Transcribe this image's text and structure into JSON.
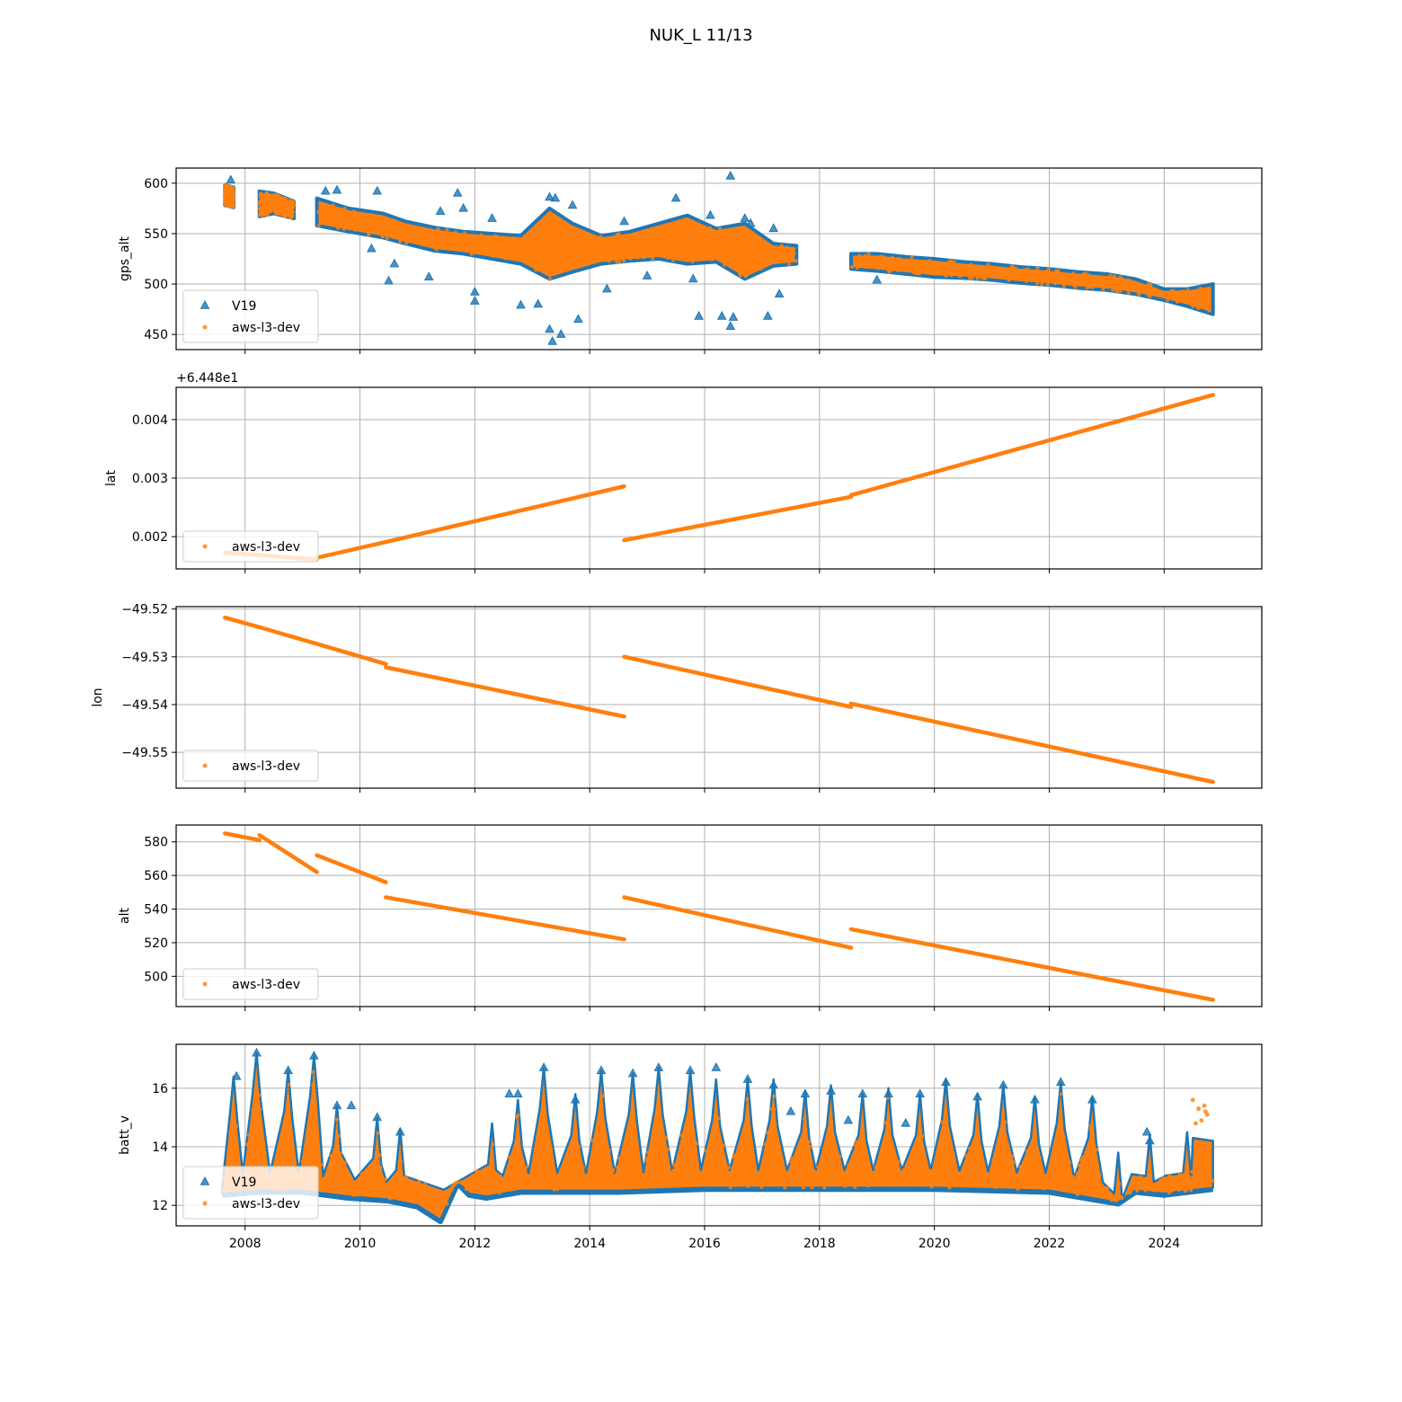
{
  "title": "NUK_L 11/13",
  "colors": {
    "v19": "#1f77b4",
    "aws": "#ff7f0e",
    "grid": "#b0b0b0"
  },
  "x_ticks": [
    "2008",
    "2010",
    "2012",
    "2014",
    "2016",
    "2018",
    "2020",
    "2022",
    "2024"
  ],
  "chart_data": [
    {
      "type": "scatter",
      "ylabel": "gps_alt",
      "xlim": [
        2006.8,
        2025.7
      ],
      "ylim": [
        435,
        615
      ],
      "y_ticks": [
        "450",
        "500",
        "550",
        "600"
      ],
      "y_tick_values": [
        450,
        500,
        550,
        600
      ],
      "legend": [
        "V19",
        "aws-l3-dev"
      ],
      "legend_position": "lower-left",
      "series": [
        {
          "name": "aws-l3-dev",
          "kind": "band",
          "points": [
            [
              2007.65,
              578,
              598
            ],
            [
              2007.8,
              576,
              596
            ],
            [
              2008.25,
              567,
              592
            ],
            [
              2008.5,
              570,
              590
            ],
            [
              2008.85,
              565,
              582
            ],
            [
              2009.25,
              558,
              585
            ],
            [
              2009.8,
              552,
              575
            ],
            [
              2010.4,
              546,
              570
            ],
            [
              2010.8,
              540,
              562
            ],
            [
              2011.3,
              533,
              556
            ],
            [
              2011.8,
              530,
              552
            ],
            [
              2012.3,
              525,
              550
            ],
            [
              2012.8,
              520,
              548
            ],
            [
              2013.3,
              505,
              575
            ],
            [
              2013.7,
              512,
              560
            ],
            [
              2014.2,
              520,
              548
            ],
            [
              2014.7,
              523,
              552
            ],
            [
              2015.2,
              525,
              560
            ],
            [
              2015.7,
              520,
              568
            ],
            [
              2016.2,
              522,
              555
            ],
            [
              2016.7,
              505,
              560
            ],
            [
              2017.2,
              518,
              540
            ],
            [
              2017.6,
              520,
              538
            ],
            [
              2018.55,
              515,
              530
            ],
            [
              2019.0,
              513,
              530
            ],
            [
              2019.5,
              510,
              527
            ],
            [
              2020.0,
              507,
              525
            ],
            [
              2020.5,
              506,
              522
            ],
            [
              2021.0,
              504,
              520
            ],
            [
              2021.5,
              501,
              517
            ],
            [
              2022.0,
              499,
              515
            ],
            [
              2022.5,
              496,
              512
            ],
            [
              2023.0,
              494,
              510
            ],
            [
              2023.5,
              490,
              505
            ],
            [
              2024.0,
              484,
              495
            ],
            [
              2024.4,
              478,
              495
            ],
            [
              2024.85,
              470,
              500
            ]
          ]
        },
        {
          "name": "V19",
          "kind": "scatter",
          "points": [
            [
              2007.75,
              603
            ],
            [
              2009.4,
              592
            ],
            [
              2009.6,
              593
            ],
            [
              2010.3,
              592
            ],
            [
              2010.2,
              535
            ],
            [
              2010.5,
              503
            ],
            [
              2010.6,
              520
            ],
            [
              2011.2,
              507
            ],
            [
              2011.4,
              572
            ],
            [
              2011.7,
              590
            ],
            [
              2011.8,
              575
            ],
            [
              2012.0,
              492
            ],
            [
              2012.0,
              483
            ],
            [
              2012.3,
              565
            ],
            [
              2012.8,
              479
            ],
            [
              2013.1,
              480
            ],
            [
              2013.3,
              586
            ],
            [
              2013.4,
              585
            ],
            [
              2013.3,
              455
            ],
            [
              2013.35,
              443
            ],
            [
              2013.5,
              450
            ],
            [
              2013.8,
              465
            ],
            [
              2013.7,
              578
            ],
            [
              2014.3,
              495
            ],
            [
              2014.6,
              562
            ],
            [
              2015.0,
              508
            ],
            [
              2015.5,
              585
            ],
            [
              2015.8,
              505
            ],
            [
              2015.9,
              468
            ],
            [
              2016.1,
              568
            ],
            [
              2016.3,
              468
            ],
            [
              2016.45,
              458
            ],
            [
              2016.45,
              607
            ],
            [
              2016.5,
              467
            ],
            [
              2016.7,
              565
            ],
            [
              2016.8,
              560
            ],
            [
              2017.1,
              468
            ],
            [
              2017.2,
              555
            ],
            [
              2017.3,
              490
            ],
            [
              2019.0,
              504
            ]
          ]
        }
      ]
    },
    {
      "type": "scatter",
      "ylabel": "lat",
      "offset_label": "+6.448e1",
      "xlim": [
        2006.8,
        2025.7
      ],
      "ylim": [
        0.00145,
        0.00455
      ],
      "y_ticks": [
        "0.002",
        "0.003",
        "0.004"
      ],
      "y_tick_values": [
        0.002,
        0.003,
        0.004
      ],
      "legend": [
        "aws-l3-dev"
      ],
      "legend_position": "lower-left",
      "series": [
        {
          "name": "aws-l3-dev",
          "segments": [
            [
              [
                2007.65,
                0.00173
              ],
              [
                2009.25,
                0.00161
              ]
            ],
            [
              [
                2009.25,
                0.00164
              ],
              [
                2010.45,
                0.00191
              ],
              [
                2014.6,
                0.00286
              ]
            ],
            [
              [
                2014.6,
                0.00194
              ],
              [
                2018.55,
                0.00268
              ]
            ],
            [
              [
                2018.55,
                0.00271
              ],
              [
                2024.85,
                0.00442
              ]
            ]
          ]
        }
      ]
    },
    {
      "type": "scatter",
      "ylabel": "lon",
      "xlim": [
        2006.8,
        2025.7
      ],
      "ylim": [
        -49.5575,
        -49.5195
      ],
      "y_ticks": [
        "−49.52",
        "−49.53",
        "−49.54",
        "−49.55"
      ],
      "y_tick_values": [
        -49.52,
        -49.53,
        -49.54,
        -49.55
      ],
      "legend": [
        "aws-l3-dev"
      ],
      "legend_position": "lower-left",
      "series": [
        {
          "name": "aws-l3-dev",
          "segments": [
            [
              [
                2007.65,
                -49.5218
              ],
              [
                2008.25,
                -49.5238
              ],
              [
                2010.45,
                -49.5315
              ]
            ],
            [
              [
                2010.45,
                -49.5322
              ],
              [
                2014.6,
                -49.5425
              ]
            ],
            [
              [
                2014.6,
                -49.53
              ],
              [
                2018.55,
                -49.5405
              ]
            ],
            [
              [
                2018.55,
                -49.5398
              ],
              [
                2024.85,
                -49.5562
              ]
            ]
          ]
        }
      ]
    },
    {
      "type": "scatter",
      "ylabel": "alt",
      "xlim": [
        2006.8,
        2025.7
      ],
      "ylim": [
        482,
        590
      ],
      "y_ticks": [
        "500",
        "520",
        "540",
        "560",
        "580"
      ],
      "y_tick_values": [
        500,
        520,
        540,
        560,
        580
      ],
      "legend": [
        "aws-l3-dev"
      ],
      "legend_position": "lower-left",
      "series": [
        {
          "name": "aws-l3-dev",
          "segments": [
            [
              [
                2007.65,
                585
              ],
              [
                2008.25,
                581
              ]
            ],
            [
              [
                2008.25,
                584
              ],
              [
                2009.25,
                562
              ]
            ],
            [
              [
                2009.25,
                572
              ],
              [
                2010.45,
                556
              ]
            ],
            [
              [
                2010.45,
                547
              ],
              [
                2014.6,
                522
              ]
            ],
            [
              [
                2014.6,
                547
              ],
              [
                2018.55,
                517
              ]
            ],
            [
              [
                2018.55,
                528
              ],
              [
                2024.85,
                486
              ]
            ]
          ]
        }
      ]
    },
    {
      "type": "scatter",
      "ylabel": "batt_v",
      "xlim": [
        2006.8,
        2025.7
      ],
      "ylim": [
        11.3,
        17.5
      ],
      "y_ticks": [
        "12",
        "14",
        "16"
      ],
      "y_tick_values": [
        12,
        14,
        16
      ],
      "legend": [
        "V19",
        "aws-l3-dev"
      ],
      "legend_position": "lower-left",
      "series": [
        {
          "name": "aws-l3-dev",
          "kind": "seasonal",
          "low_points": [
            [
              2007.6,
              12.4
            ],
            [
              2008.2,
              12.5
            ],
            [
              2009.0,
              12.5
            ],
            [
              2009.8,
              12.3
            ],
            [
              2010.5,
              12.2
            ],
            [
              2011.0,
              12.0
            ],
            [
              2011.4,
              11.5
            ],
            [
              2011.7,
              12.8
            ],
            [
              2011.9,
              12.4
            ],
            [
              2012.2,
              12.3
            ],
            [
              2012.8,
              12.5
            ],
            [
              2013.5,
              12.5
            ],
            [
              2014.5,
              12.5
            ],
            [
              2016.0,
              12.6
            ],
            [
              2018.0,
              12.6
            ],
            [
              2020.0,
              12.6
            ],
            [
              2022.0,
              12.5
            ],
            [
              2022.9,
              12.2
            ],
            [
              2023.2,
              12.1
            ],
            [
              2023.5,
              12.5
            ],
            [
              2024.0,
              12.4
            ],
            [
              2024.85,
              12.6
            ]
          ],
          "peaks": [
            [
              2007.8,
              16.4
            ],
            [
              2008.2,
              17.2
            ],
            [
              2008.75,
              16.6
            ],
            [
              2009.2,
              17.1
            ],
            [
              2009.6,
              15.4
            ],
            [
              2010.3,
              15.0
            ],
            [
              2010.7,
              14.6
            ],
            [
              2012.3,
              14.8
            ],
            [
              2012.75,
              15.6
            ],
            [
              2013.2,
              16.7
            ],
            [
              2013.75,
              15.8
            ],
            [
              2014.2,
              16.6
            ],
            [
              2014.75,
              16.5
            ],
            [
              2015.2,
              16.7
            ],
            [
              2015.75,
              16.6
            ],
            [
              2016.2,
              16.3
            ],
            [
              2016.75,
              16.3
            ],
            [
              2017.2,
              16.3
            ],
            [
              2017.75,
              15.9
            ],
            [
              2018.2,
              16.1
            ],
            [
              2018.75,
              15.8
            ],
            [
              2019.2,
              16.0
            ],
            [
              2019.75,
              15.8
            ],
            [
              2020.2,
              16.3
            ],
            [
              2020.75,
              15.8
            ],
            [
              2021.2,
              16.1
            ],
            [
              2021.75,
              15.7
            ],
            [
              2022.2,
              16.2
            ],
            [
              2022.75,
              15.7
            ],
            [
              2023.2,
              13.8
            ],
            [
              2023.75,
              14.4
            ],
            [
              2024.4,
              14.5
            ]
          ],
          "outliers": [
            [
              2024.5,
              15.6
            ],
            [
              2024.6,
              15.3
            ],
            [
              2024.65,
              14.9
            ],
            [
              2024.7,
              15.4
            ],
            [
              2024.75,
              15.1
            ],
            [
              2024.55,
              14.8
            ],
            [
              2024.72,
              15.2
            ]
          ]
        },
        {
          "name": "V19",
          "kind": "scatter",
          "points": [
            [
              2008.2,
              17.2
            ],
            [
              2009.2,
              17.1
            ],
            [
              2008.75,
              16.6
            ],
            [
              2007.85,
              16.4
            ],
            [
              2009.6,
              15.4
            ],
            [
              2009.85,
              15.4
            ],
            [
              2010.3,
              15.0
            ],
            [
              2010.7,
              14.5
            ],
            [
              2012.6,
              15.8
            ],
            [
              2012.75,
              15.8
            ],
            [
              2013.2,
              16.7
            ],
            [
              2013.75,
              15.6
            ],
            [
              2014.2,
              16.6
            ],
            [
              2014.75,
              16.5
            ],
            [
              2015.2,
              16.7
            ],
            [
              2015.75,
              16.6
            ],
            [
              2016.2,
              16.7
            ],
            [
              2016.75,
              16.3
            ],
            [
              2017.2,
              16.1
            ],
            [
              2017.5,
              15.2
            ],
            [
              2017.75,
              15.8
            ],
            [
              2018.2,
              15.9
            ],
            [
              2018.5,
              14.9
            ],
            [
              2018.75,
              15.8
            ],
            [
              2019.2,
              15.8
            ],
            [
              2019.5,
              14.8
            ],
            [
              2019.75,
              15.8
            ],
            [
              2020.2,
              16.2
            ],
            [
              2020.75,
              15.7
            ],
            [
              2021.2,
              16.1
            ],
            [
              2021.75,
              15.6
            ],
            [
              2022.2,
              16.2
            ],
            [
              2022.75,
              15.6
            ],
            [
              2023.75,
              14.2
            ],
            [
              2023.7,
              14.5
            ]
          ]
        }
      ]
    }
  ]
}
